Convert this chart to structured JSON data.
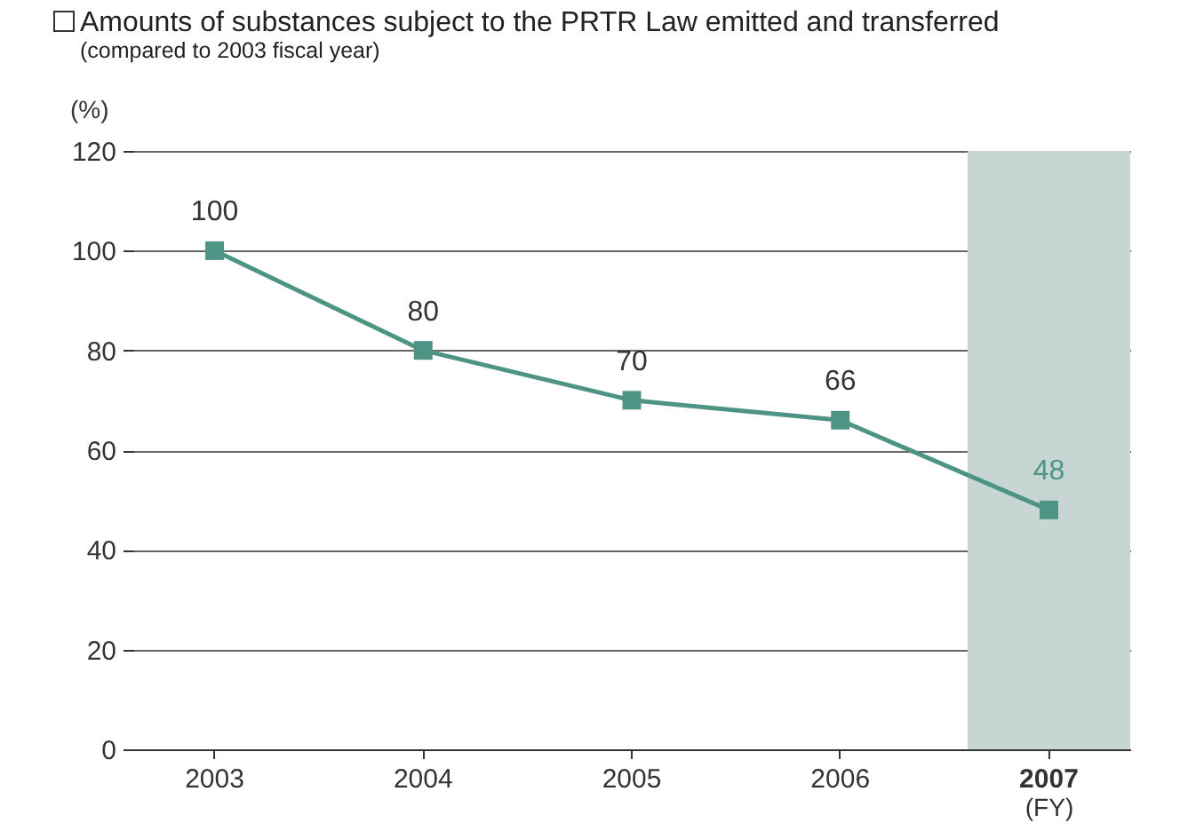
{
  "chart_data": {
    "type": "line",
    "title": "Amounts of substances subject to the PRTR Law emitted and transferred",
    "subtitle": "(compared to 2003 fiscal year)",
    "ylabel": "(%)",
    "xlabel": "(FY)",
    "categories": [
      "2003",
      "2004",
      "2005",
      "2006",
      "2007"
    ],
    "series": [
      {
        "color": "#4d9484",
        "values": [
          100,
          80,
          70,
          66,
          48
        ]
      }
    ],
    "ylim": [
      0,
      120
    ],
    "yticks": [
      0,
      20,
      40,
      60,
      80,
      100,
      120
    ],
    "bands": [
      {
        "axis": "x",
        "from": "2007",
        "to": "2007",
        "color": "#c7d6d3"
      }
    ],
    "data_labels": true,
    "grid": "y",
    "marker": "square"
  }
}
